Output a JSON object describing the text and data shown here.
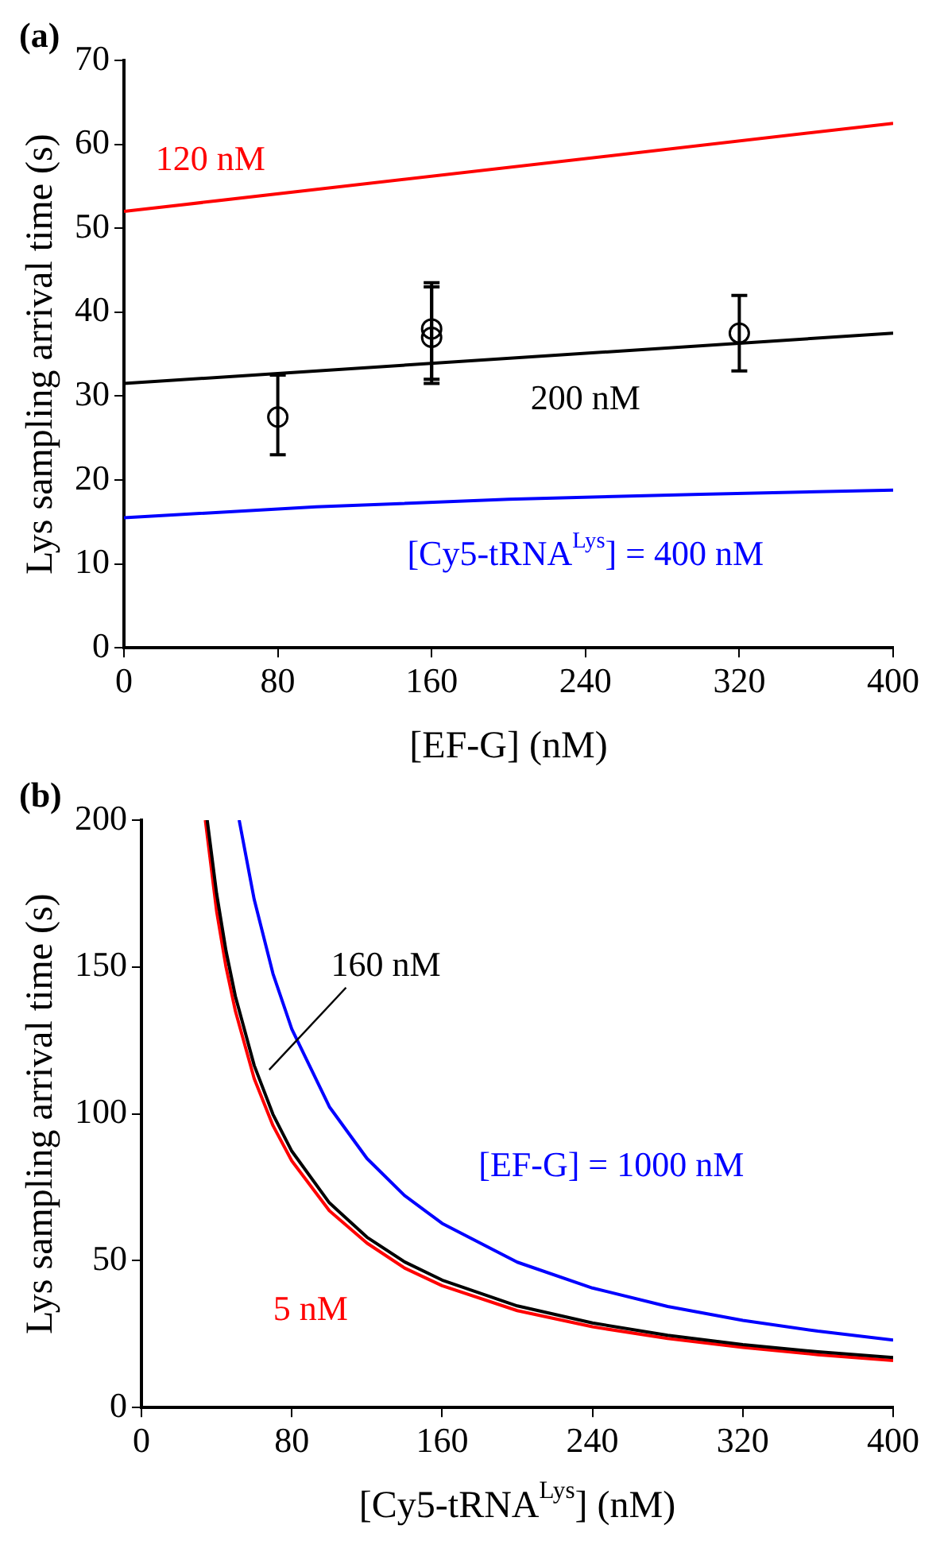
{
  "chart_data": [
    {
      "type": "line",
      "title": "(a)",
      "xlabel": "[EF-G] (nM)",
      "ylabel": "Lys sampling arrival time (s)",
      "xlim": [
        0,
        400
      ],
      "xticks": [
        0,
        80,
        160,
        240,
        320,
        400
      ],
      "ylim": [
        0,
        70
      ],
      "yticks": [
        0,
        10,
        20,
        30,
        40,
        50,
        60,
        70
      ],
      "grid": false,
      "series": [
        {
          "name": "120 nM",
          "color": "#ff0000",
          "x": [
            0,
            400
          ],
          "values": [
            52,
            62.5
          ]
        },
        {
          "name": "200 nM",
          "color": "#000000",
          "x": [
            0,
            400
          ],
          "values": [
            31.5,
            37.5
          ]
        },
        {
          "name": "[Cy5-tRNA$^{Lys}$] = 400 nM",
          "color": "#0000ff",
          "x": [
            0,
            100,
            200,
            300,
            400
          ],
          "values": [
            15.5,
            16.8,
            17.7,
            18.3,
            18.8
          ]
        },
        {
          "type": "scatter",
          "marker": "circle",
          "color": "#000000",
          "x": [
            80,
            160,
            160,
            320
          ],
          "values": [
            27.5,
            37,
            38,
            37.5
          ],
          "errors": [
            [
              23,
              32.5
            ],
            [
              31.5,
              43
            ],
            [
              32,
              43.5
            ],
            [
              33,
              42
            ]
          ]
        }
      ]
    },
    {
      "type": "line",
      "title": "(b)",
      "xlabel": "[Cy5-tRNA$^{Lys}$] (nM)",
      "ylabel": "Lys sampling arrival time (s)",
      "xlim": [
        0,
        400
      ],
      "xticks": [
        0,
        80,
        160,
        240,
        320,
        400
      ],
      "ylim": [
        0,
        200
      ],
      "yticks": [
        0,
        50,
        100,
        150,
        200
      ],
      "grid": false,
      "series": [
        {
          "name": "160 nM",
          "color": "#000000",
          "x": [
            35,
            40,
            45,
            50,
            60,
            70,
            80,
            100,
            120,
            140,
            160,
            200,
            240,
            280,
            320,
            360,
            400
          ],
          "values": [
            200,
            175,
            155.5,
            140,
            116.5,
            99.8,
            87.3,
            69.7,
            58,
            49.6,
            43.4,
            34.6,
            28.8,
            24.6,
            21.4,
            19,
            17
          ]
        },
        {
          "name": "[EF-G] = 1000 nM",
          "color": "#0000ff",
          "x": [
            52,
            60,
            70,
            80,
            100,
            120,
            140,
            160,
            200,
            240,
            280,
            320,
            360,
            400
          ],
          "values": [
            200,
            173,
            147.7,
            128.9,
            102.4,
            84.8,
            72.2,
            62.7,
            49.5,
            40.7,
            34.4,
            29.7,
            26,
            23
          ]
        },
        {
          "name": "5 nM",
          "color": "#ff0000",
          "x": [
            34,
            40,
            45,
            50,
            60,
            70,
            80,
            100,
            120,
            140,
            160,
            200,
            240,
            280,
            320,
            360,
            400
          ],
          "values": [
            200,
            169,
            150,
            135,
            112,
            96,
            84,
            67,
            56,
            47.5,
            41.5,
            33,
            27.5,
            23.5,
            20.5,
            18,
            16
          ]
        }
      ]
    }
  ]
}
